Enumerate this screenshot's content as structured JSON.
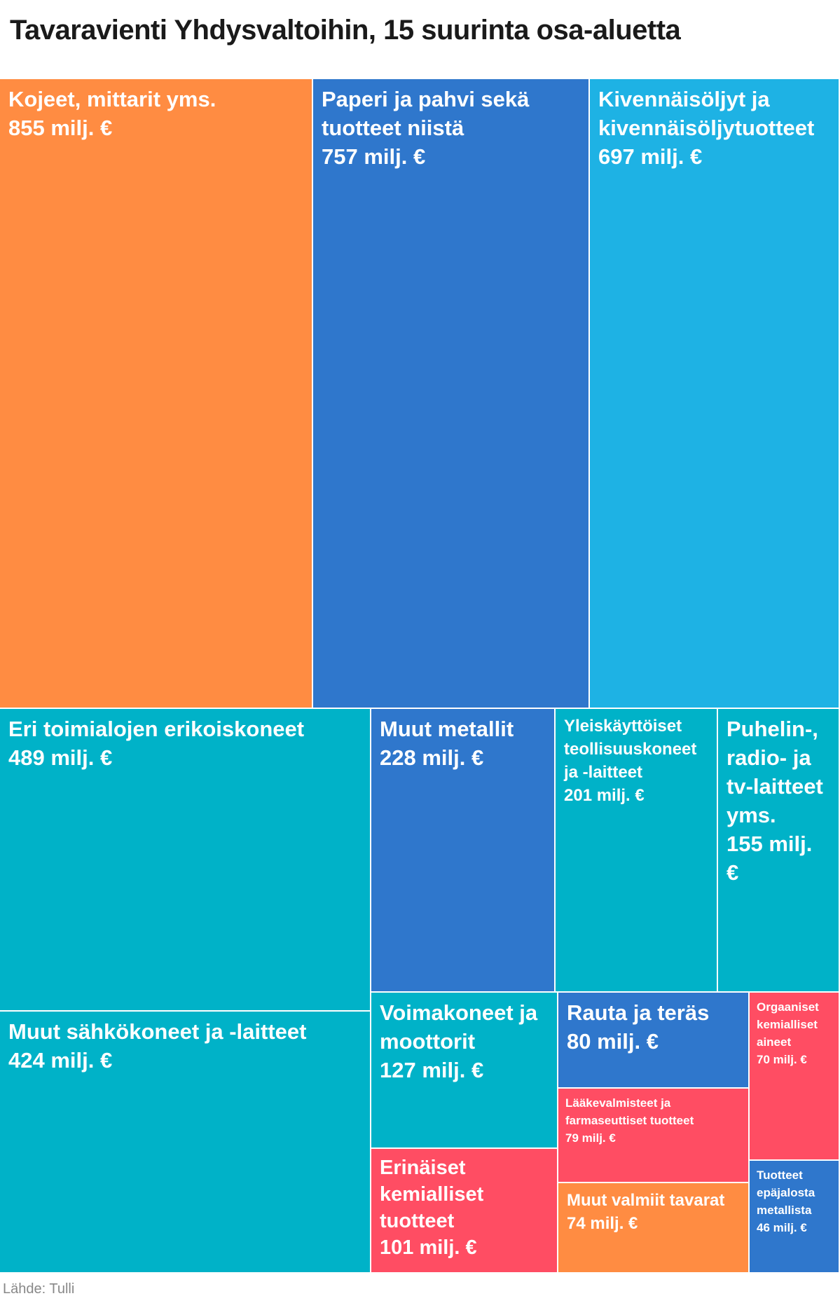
{
  "title": "Tavaravienti Yhdysvaltoihin, 15 suurinta osa-aluetta",
  "source": "Lähde: Tulli",
  "colors": {
    "orange": "#FF8C42",
    "blue": "#2F77CC",
    "lightblue": "#1EB2E4",
    "teal": "#00B2C8",
    "red": "#FF4D63"
  },
  "chart_data": {
    "type": "treemap",
    "title": "Tavaravienti Yhdysvaltoihin, 15 suurinta osa-aluetta",
    "unit": "milj. €",
    "items": [
      {
        "name": "Kojeet, mittarit yms.",
        "value": 855,
        "value_label": "855 milj. €",
        "color": "#FF8C42"
      },
      {
        "name": "Paperi ja pahvi sekä tuotteet niistä",
        "value": 757,
        "value_label": "757 milj. €",
        "color": "#2F77CC"
      },
      {
        "name": "Kivennäisöljyt ja kivennäisöljytuotteet",
        "value": 697,
        "value_label": "697 milj. €",
        "color": "#1EB2E4"
      },
      {
        "name": "Eri toimialojen erikoiskoneet",
        "value": 489,
        "value_label": "489 milj. €",
        "color": "#00B2C8"
      },
      {
        "name": "Muut sähkökoneet ja -laitteet",
        "value": 424,
        "value_label": "424 milj. €",
        "color": "#00B2C8"
      },
      {
        "name": "Muut metallit",
        "value": 228,
        "value_label": "228 milj. €",
        "color": "#2F77CC"
      },
      {
        "name": "Yleiskäyttöiset teollisuuskoneet ja -laitteet",
        "value": 201,
        "value_label": "201 milj. €",
        "color": "#00B2C8"
      },
      {
        "name": "Puhelin-, radio- ja tv-laitteet yms.",
        "value": 155,
        "value_label": "155 milj. €",
        "color": "#00B2C8"
      },
      {
        "name": "Voimakoneet ja moottorit",
        "value": 127,
        "value_label": "127 milj. €",
        "color": "#00B2C8"
      },
      {
        "name": "Erinäiset kemialliset tuotteet",
        "value": 101,
        "value_label": "101 milj. €",
        "color": "#FF4D63"
      },
      {
        "name": "Rauta ja teräs",
        "value": 80,
        "value_label": "80 milj. €",
        "color": "#2F77CC"
      },
      {
        "name": "Lääkevalmisteet ja farmaseuttiset tuotteet",
        "value": 79,
        "value_label": "79 milj. €",
        "color": "#FF4D63"
      },
      {
        "name": "Muut valmiit tavarat",
        "value": 74,
        "value_label": "74 milj. €",
        "color": "#FF8C42"
      },
      {
        "name": "Orgaaniset kemialliset aineet",
        "value": 70,
        "value_label": "70 milj. €",
        "color": "#FF4D63"
      },
      {
        "name": "Tuotteet epäjalosta metallista",
        "value": 46,
        "value_label": "46 milj. €",
        "color": "#2F77CC"
      }
    ]
  }
}
